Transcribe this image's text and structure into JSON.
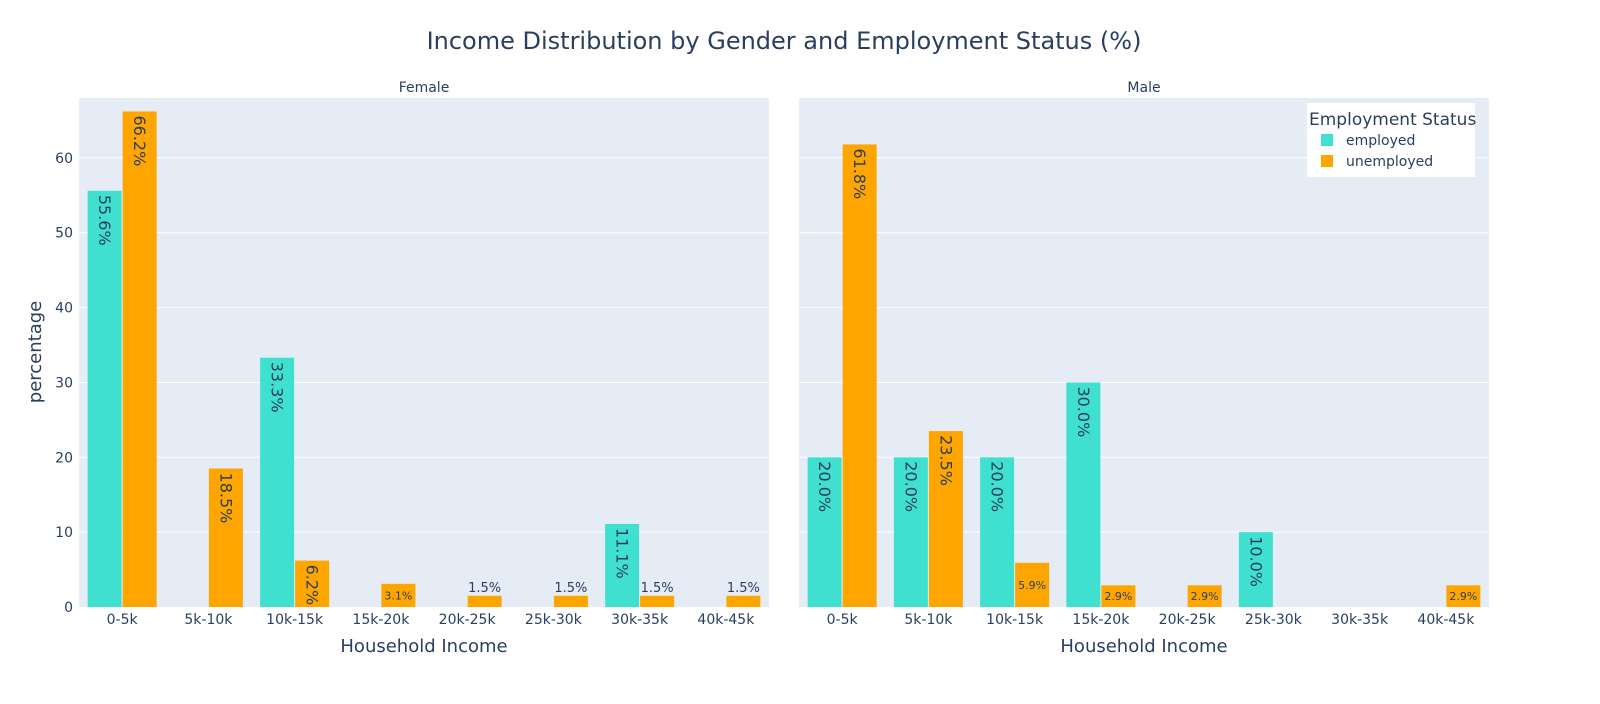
{
  "chart_data": {
    "type": "bar",
    "title": "Income Distribution by Gender and Employment Status (%)",
    "ylabel": "percentage",
    "xlabel": "Household Income",
    "ylim": [
      0,
      68
    ],
    "yticks": [
      0,
      10,
      20,
      30,
      40,
      50,
      60
    ],
    "grid": true,
    "legend": {
      "title": "Employment Status",
      "placement": "top-right",
      "entries": [
        {
          "name": "employed",
          "color": "#40E0D0"
        },
        {
          "name": "unemployed",
          "color": "#FFA500"
        }
      ]
    },
    "categories": [
      "0-5k",
      "5k-10k",
      "10k-15k",
      "15k-20k",
      "20k-25k",
      "25k-30k",
      "30k-35k",
      "40k-45k"
    ],
    "panels": [
      {
        "name": "Female",
        "series": [
          {
            "name": "employed",
            "color": "#40E0D0",
            "values": [
              55.6,
              null,
              33.3,
              null,
              null,
              null,
              11.1,
              null
            ],
            "labels": [
              "55.6%",
              null,
              "33.3%",
              null,
              null,
              null,
              "11.1%",
              null
            ]
          },
          {
            "name": "unemployed",
            "color": "#FFA500",
            "values": [
              66.2,
              18.5,
              6.2,
              3.1,
              1.5,
              1.5,
              1.5,
              1.5
            ],
            "labels": [
              "66.2%",
              "18.5%",
              "6.2%",
              "3.1%",
              "1.5%",
              "1.5%",
              "1.5%",
              "1.5%"
            ]
          }
        ]
      },
      {
        "name": "Male",
        "series": [
          {
            "name": "employed",
            "color": "#40E0D0",
            "values": [
              20.0,
              20.0,
              20.0,
              30.0,
              null,
              10.0,
              null,
              null
            ],
            "labels": [
              "20.0%",
              "20.0%",
              "20.0%",
              "30.0%",
              null,
              "10.0%",
              null,
              null
            ]
          },
          {
            "name": "unemployed",
            "color": "#FFA500",
            "values": [
              61.8,
              23.5,
              5.9,
              2.9,
              2.9,
              null,
              null,
              2.9
            ],
            "labels": [
              "61.8%",
              "23.5%",
              "5.9%",
              "2.9%",
              "2.9%",
              null,
              null,
              "2.9%"
            ]
          }
        ]
      }
    ]
  }
}
